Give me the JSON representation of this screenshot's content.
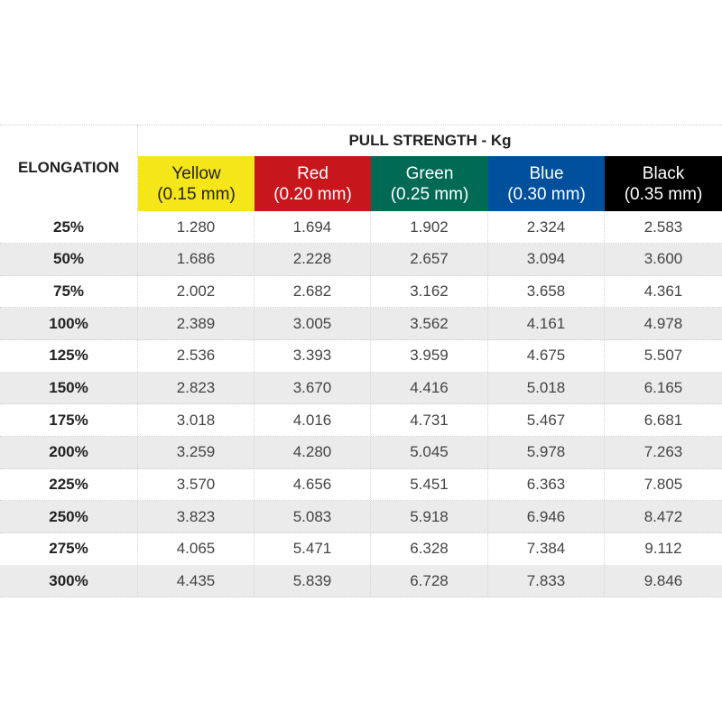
{
  "header": {
    "elongation_label": "ELONGATION",
    "group_label": "PULL STRENGTH - Kg",
    "columns": [
      {
        "name": "Yellow",
        "size": "(0.15 mm)",
        "color": "#f5e61a",
        "text_color": "#222222"
      },
      {
        "name": "Red",
        "size": "(0.20 mm)",
        "color": "#c8161d",
        "text_color": "#ffffff"
      },
      {
        "name": "Green",
        "size": "(0.25 mm)",
        "color": "#006a55",
        "text_color": "#ffffff"
      },
      {
        "name": "Blue",
        "size": "(0.30 mm)",
        "color": "#00509d",
        "text_color": "#ffffff"
      },
      {
        "name": "Black",
        "size": "(0.35 mm)",
        "color": "#000000",
        "text_color": "#ffffff"
      }
    ]
  },
  "rows": [
    {
      "elongation": "25%",
      "values": [
        "1.280",
        "1.694",
        "1.902",
        "2.324",
        "2.583"
      ]
    },
    {
      "elongation": "50%",
      "values": [
        "1.686",
        "2.228",
        "2.657",
        "3.094",
        "3.600"
      ]
    },
    {
      "elongation": "75%",
      "values": [
        "2.002",
        "2.682",
        "3.162",
        "3.658",
        "4.361"
      ]
    },
    {
      "elongation": "100%",
      "values": [
        "2.389",
        "3.005",
        "3.562",
        "4.161",
        "4.978"
      ]
    },
    {
      "elongation": "125%",
      "values": [
        "2.536",
        "3.393",
        "3.959",
        "4.675",
        "5.507"
      ]
    },
    {
      "elongation": "150%",
      "values": [
        "2.823",
        "3.670",
        "4.416",
        "5.018",
        "6.165"
      ]
    },
    {
      "elongation": "175%",
      "values": [
        "3.018",
        "4.016",
        "4.731",
        "5.467",
        "6.681"
      ]
    },
    {
      "elongation": "200%",
      "values": [
        "3.259",
        "4.280",
        "5.045",
        "5.978",
        "7.263"
      ]
    },
    {
      "elongation": "225%",
      "values": [
        "3.570",
        "4.656",
        "5.451",
        "6.363",
        "7.805"
      ]
    },
    {
      "elongation": "250%",
      "values": [
        "3.823",
        "5.083",
        "5.918",
        "6.946",
        "8.472"
      ]
    },
    {
      "elongation": "275%",
      "values": [
        "4.065",
        "5.471",
        "6.328",
        "7.384",
        "9.112"
      ]
    },
    {
      "elongation": "300%",
      "values": [
        "4.435",
        "5.839",
        "6.728",
        "7.833",
        "9.846"
      ]
    }
  ]
}
